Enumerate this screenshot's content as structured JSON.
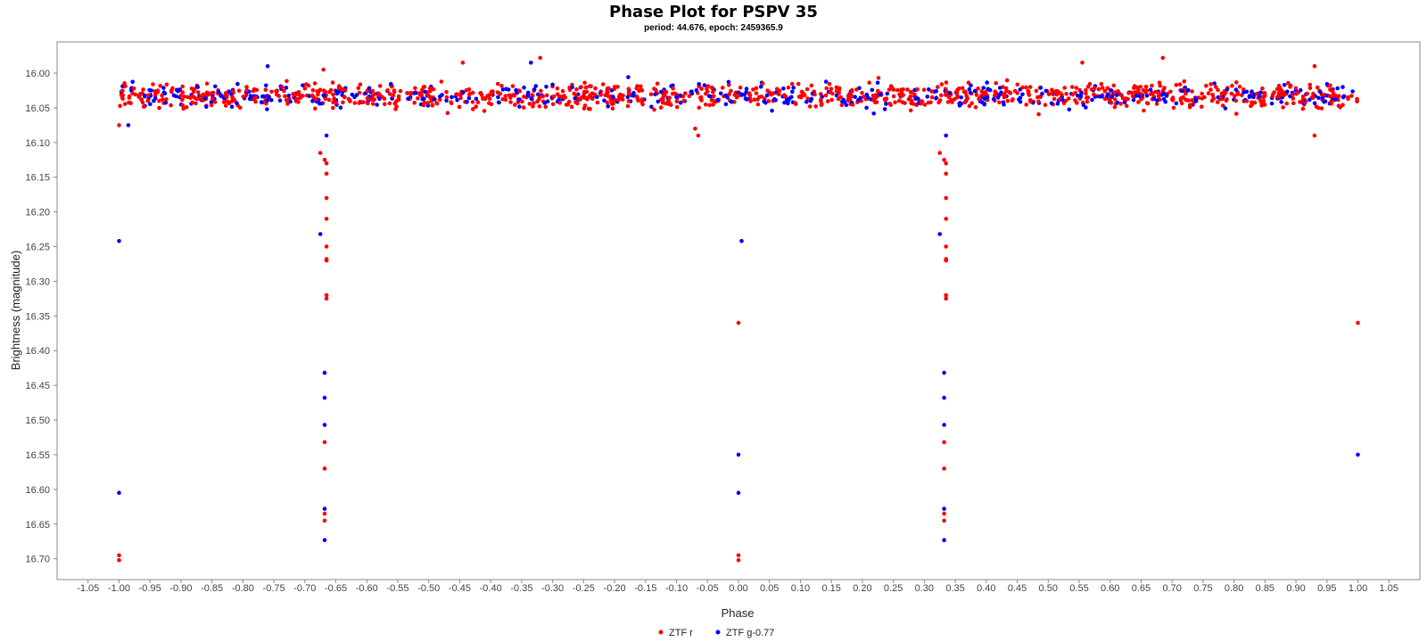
{
  "chart_data": {
    "type": "scatter",
    "title": "Phase Plot for PSPV 35",
    "subtitle": "period: 44.676, epoch: 2459365.9",
    "xlabel": "Phase",
    "ylabel": "Brightness (magnitude)",
    "xlim": [
      -1.1,
      1.1
    ],
    "ylim": [
      16.73,
      15.955
    ],
    "y_inverted": true,
    "grid": false,
    "legend_position": "bottom-center",
    "x_ticks": [
      "-1.05",
      "-1.00",
      "-0.95",
      "-0.90",
      "-0.85",
      "-0.80",
      "-0.75",
      "-0.70",
      "-0.65",
      "-0.60",
      "-0.55",
      "-0.50",
      "-0.45",
      "-0.40",
      "-0.35",
      "-0.30",
      "-0.25",
      "-0.20",
      "-0.15",
      "-0.10",
      "-0.05",
      "0.00",
      "0.05",
      "0.10",
      "0.15",
      "0.20",
      "0.25",
      "0.30",
      "0.35",
      "0.40",
      "0.45",
      "0.50",
      "0.55",
      "0.60",
      "0.65",
      "0.70",
      "0.75",
      "0.80",
      "0.85",
      "0.90",
      "0.95",
      "1.00",
      "1.05"
    ],
    "y_ticks": [
      "16.00",
      "16.05",
      "16.10",
      "16.15",
      "16.20",
      "16.25",
      "16.30",
      "16.35",
      "16.40",
      "16.45",
      "16.50",
      "16.55",
      "16.60",
      "16.65",
      "16.70"
    ],
    "series": [
      {
        "name": "ZTF r",
        "color": "#ff0000",
        "points": [
          [
            -1.0,
            16.075
          ],
          [
            -1.0,
            16.695
          ],
          [
            -1.0,
            16.702
          ],
          [
            -0.675,
            16.115
          ],
          [
            -0.668,
            16.125
          ],
          [
            -0.665,
            16.13
          ],
          [
            -0.665,
            16.145
          ],
          [
            -0.665,
            16.18
          ],
          [
            -0.665,
            16.21
          ],
          [
            -0.665,
            16.25
          ],
          [
            -0.665,
            16.268
          ],
          [
            -0.665,
            16.27
          ],
          [
            -0.665,
            16.32
          ],
          [
            -0.665,
            16.325
          ],
          [
            -0.668,
            16.532
          ],
          [
            -0.668,
            16.57
          ],
          [
            -0.668,
            16.635
          ],
          [
            -0.668,
            16.645
          ],
          [
            -0.67,
            15.995
          ],
          [
            -0.32,
            15.978
          ],
          [
            -0.445,
            15.985
          ],
          [
            0.685,
            15.978
          ],
          [
            0.555,
            15.985
          ],
          [
            0.93,
            15.99
          ],
          [
            -0.065,
            16.09
          ],
          [
            -0.07,
            16.08
          ],
          [
            0.93,
            16.09
          ],
          [
            0.0,
            16.36
          ],
          [
            0.0,
            16.695
          ],
          [
            0.0,
            16.702
          ],
          [
            0.325,
            16.115
          ],
          [
            0.332,
            16.125
          ],
          [
            0.335,
            16.13
          ],
          [
            0.335,
            16.145
          ],
          [
            0.335,
            16.18
          ],
          [
            0.335,
            16.21
          ],
          [
            0.335,
            16.25
          ],
          [
            0.335,
            16.268
          ],
          [
            0.335,
            16.27
          ],
          [
            0.335,
            16.32
          ],
          [
            0.335,
            16.325
          ],
          [
            0.332,
            16.532
          ],
          [
            0.332,
            16.57
          ],
          [
            0.332,
            16.635
          ],
          [
            0.332,
            16.645
          ],
          [
            1.0,
            16.36
          ]
        ]
      },
      {
        "name": "ZTF g-0.77",
        "color": "#0000ff",
        "points": [
          [
            -1.0,
            16.242
          ],
          [
            -1.0,
            16.605
          ],
          [
            -0.985,
            16.075
          ],
          [
            -0.675,
            16.232
          ],
          [
            -0.668,
            16.432
          ],
          [
            -0.668,
            16.468
          ],
          [
            -0.668,
            16.507
          ],
          [
            -0.668,
            16.628
          ],
          [
            -0.668,
            16.673
          ],
          [
            -0.665,
            16.09
          ],
          [
            -0.335,
            15.985
          ],
          [
            -0.76,
            15.99
          ],
          [
            0.005,
            16.242
          ],
          [
            0.0,
            16.55
          ],
          [
            0.0,
            16.605
          ],
          [
            0.325,
            16.232
          ],
          [
            0.332,
            16.432
          ],
          [
            0.332,
            16.468
          ],
          [
            0.332,
            16.507
          ],
          [
            0.332,
            16.628
          ],
          [
            0.332,
            16.673
          ],
          [
            0.335,
            16.09
          ],
          [
            1.0,
            16.55
          ]
        ]
      }
    ],
    "band": {
      "note": "dense band of points across all phases",
      "series_colors": [
        "#ff0000",
        "#0000ff"
      ],
      "y_center": 16.033,
      "y_spread": 0.022,
      "x_range": [
        -1.0,
        1.0
      ]
    }
  }
}
